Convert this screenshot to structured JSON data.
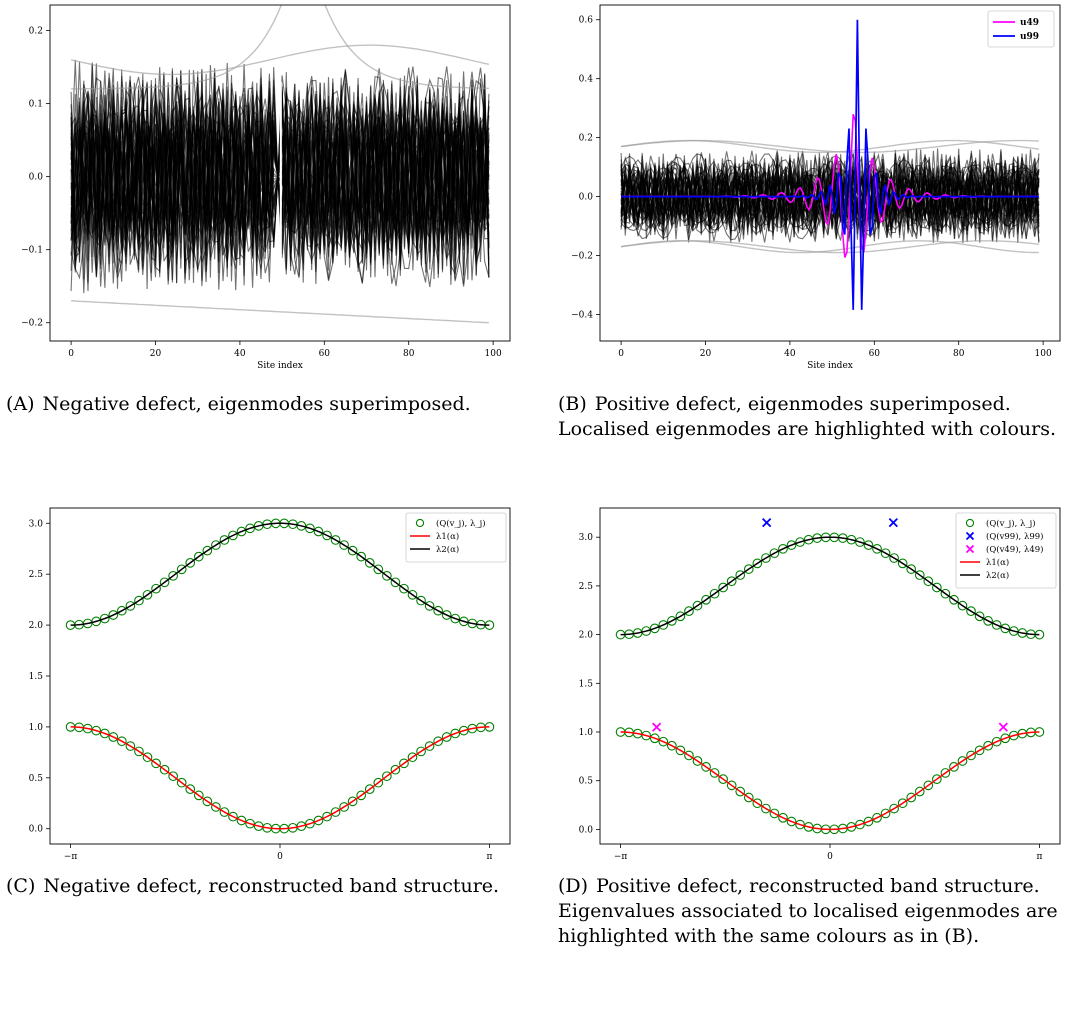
{
  "panels": [
    {
      "id": "a",
      "type": "line",
      "description_kind": "superimposed-eigenmodes",
      "xlabel": "Site index",
      "ylabel": "",
      "xlim": [
        -5,
        104
      ],
      "ylim": [
        -0.225,
        0.235
      ],
      "xticks": [
        0,
        20,
        40,
        60,
        80,
        100
      ],
      "xtick_labels": [
        "0",
        "20",
        "40",
        "60",
        "80",
        "100"
      ],
      "yticks": [
        -0.2,
        -0.1,
        0.0,
        0.1,
        0.2
      ],
      "ytick_labels": [
        "−0.2",
        "−0.1",
        "0.0",
        "0.1",
        "0.2"
      ],
      "legend": null,
      "caption_label": "(A)",
      "caption_text": "Negative defect, eigenmodes superimposed."
    },
    {
      "id": "b",
      "type": "line",
      "description_kind": "superimposed-eigenmodes",
      "xlabel": "Site index",
      "ylabel": "",
      "xlim": [
        -5,
        104
      ],
      "ylim": [
        -0.49,
        0.65
      ],
      "xticks": [
        0,
        20,
        40,
        60,
        80,
        100
      ],
      "xtick_labels": [
        "0",
        "20",
        "40",
        "60",
        "80",
        "100"
      ],
      "yticks": [
        -0.4,
        -0.2,
        0.0,
        0.2,
        0.4,
        0.6
      ],
      "ytick_labels": [
        "−0.4",
        "−0.2",
        "0.0",
        "0.2",
        "0.4",
        "0.6"
      ],
      "legend": {
        "placement": "top-right",
        "entries": [
          {
            "label": "u49",
            "color": "#ff00ff"
          },
          {
            "label": "u99",
            "color": "#0000ff"
          }
        ]
      },
      "caption_label": "(B)",
      "caption_text": "Positive defect, eigenmodes superimposed. Localised eigenmodes are highlighted with colours."
    },
    {
      "id": "c",
      "type": "scatter",
      "xlabel": "",
      "ylabel": "",
      "xlim": [
        -3.45,
        3.45
      ],
      "ylim": [
        -0.15,
        3.15
      ],
      "xticks": [
        -3.14159,
        0,
        3.14159
      ],
      "xtick_labels": [
        "−π",
        "0",
        "π"
      ],
      "yticks": [
        0.0,
        0.5,
        1.0,
        1.5,
        2.0,
        2.5,
        3.0
      ],
      "ytick_labels": [
        "0.0",
        "0.5",
        "1.0",
        "1.5",
        "2.0",
        "2.5",
        "3.0"
      ],
      "series": [
        {
          "name": "(Q(v_j), λ_j)",
          "kind": "markers",
          "color": "#008000"
        },
        {
          "name": "λ1(α)",
          "kind": "line",
          "color": "#ff0000"
        },
        {
          "name": "λ2(α)",
          "kind": "line",
          "color": "#000000"
        }
      ],
      "legend": {
        "placement": "top-right"
      },
      "caption_label": "(C)",
      "caption_text": "Negative defect, reconstructed band structure."
    },
    {
      "id": "d",
      "type": "scatter",
      "xlabel": "",
      "ylabel": "",
      "xlim": [
        -3.45,
        3.45
      ],
      "ylim": [
        -0.15,
        3.3
      ],
      "xticks": [
        -3.14159,
        0,
        3.14159
      ],
      "xtick_labels": [
        "−π",
        "0",
        "π"
      ],
      "yticks": [
        0.0,
        0.5,
        1.0,
        1.5,
        2.0,
        2.5,
        3.0
      ],
      "ytick_labels": [
        "0.0",
        "0.5",
        "1.0",
        "1.5",
        "2.0",
        "2.5",
        "3.0"
      ],
      "series": [
        {
          "name": "(Q(v_j), λ_j)",
          "kind": "markers",
          "color": "#008000"
        },
        {
          "name": "(Q(v99), λ99)",
          "kind": "cross",
          "color": "#0000ff",
          "points": [
            [
              -0.95,
              3.15
            ],
            [
              0.95,
              3.15
            ]
          ]
        },
        {
          "name": "(Q(v49), λ49)",
          "kind": "cross",
          "color": "#ff00ff",
          "points": [
            [
              -2.6,
              1.05
            ],
            [
              2.6,
              1.05
            ]
          ]
        },
        {
          "name": "λ1(α)",
          "kind": "line",
          "color": "#ff0000"
        },
        {
          "name": "λ2(α)",
          "kind": "line",
          "color": "#000000"
        }
      ],
      "legend": {
        "placement": "top-right"
      },
      "caption_label": "(D)",
      "caption_text": "Positive defect, reconstructed band structure. Eigenvalues associated to localised eigenmodes are highlighted with the same colours as in (B)."
    }
  ],
  "chart_data": [
    {
      "type": "line",
      "title": "",
      "xlabel": "Site index",
      "ylabel": "",
      "x_range": [
        0,
        99
      ],
      "ylim": [
        -0.225,
        0.235
      ],
      "notes_series": "100 superimposed eigenmodes (black, semi-transparent), amplitudes roughly within ±0.17, one smooth mode peaking near 0.22 at site 50"
    },
    {
      "type": "line",
      "title": "",
      "xlabel": "Site index",
      "ylabel": "",
      "x_range": [
        0,
        99
      ],
      "ylim": [
        -0.49,
        0.65
      ],
      "series": [
        {
          "name": "u49",
          "peak_site": 55,
          "max": 0.33,
          "min": -0.25
        },
        {
          "name": "u99",
          "peak_site": 56,
          "max": 0.6,
          "min": -0.44
        }
      ]
    },
    {
      "type": "scatter",
      "title": "",
      "x": "alpha in [-π, π]",
      "bands": [
        {
          "name": "λ1(α)",
          "range": [
            0.0,
            1.0
          ]
        },
        {
          "name": "λ2(α)",
          "range": [
            2.0,
            3.0
          ]
        }
      ]
    },
    {
      "type": "scatter",
      "title": "",
      "x": "alpha in [-π, π]",
      "bands": [
        {
          "name": "λ1(α)",
          "range": [
            0.0,
            1.0
          ]
        },
        {
          "name": "λ2(α)",
          "range": [
            2.0,
            3.0
          ]
        }
      ],
      "localized": [
        {
          "name": "(Q(v99), λ99)",
          "points": [
            [
              -0.95,
              3.15
            ],
            [
              0.95,
              3.15
            ]
          ]
        },
        {
          "name": "(Q(v49), λ49)",
          "points": [
            [
              -2.6,
              1.05
            ],
            [
              2.6,
              1.05
            ]
          ]
        }
      ]
    }
  ]
}
